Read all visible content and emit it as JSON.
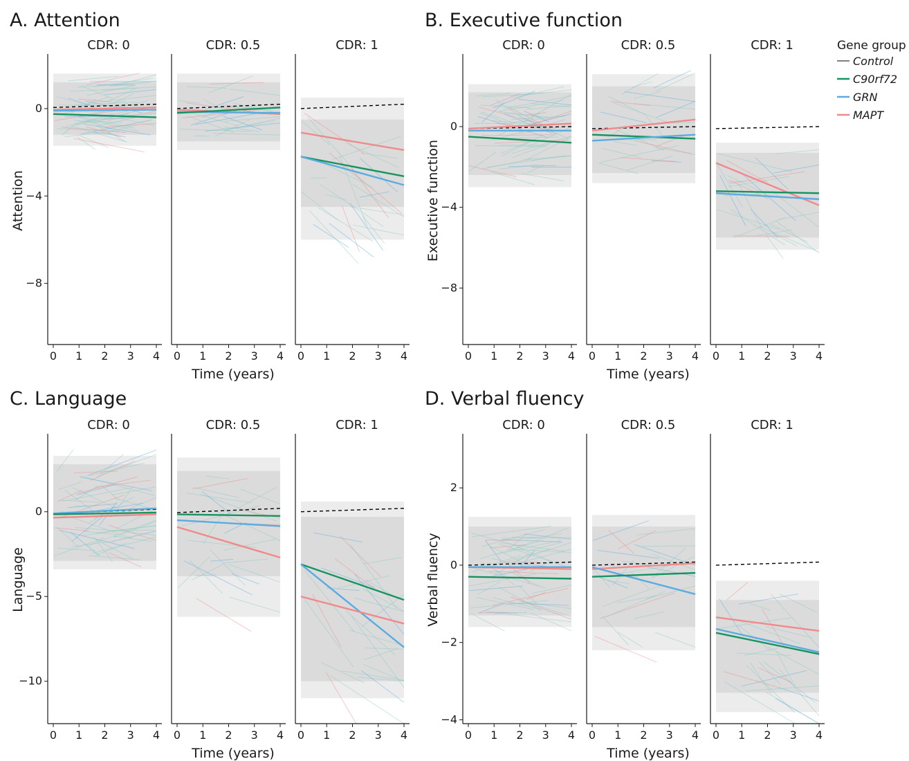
{
  "colors": {
    "Control": "#7f7f7f",
    "C90rf72": "#17935f",
    "GRN": "#5aabe0",
    "MAPT": "#f08a8a",
    "band_outer": "#ececec",
    "band_inner": "#d6d6d6",
    "spaghetti": "#8cc9c2"
  },
  "legend": {
    "title": "Gene group",
    "entries": [
      "Control",
      "C90rf72",
      "GRN",
      "MAPT"
    ]
  },
  "chart_data": [
    {
      "id": "A",
      "type": "line",
      "title": "A. Attention",
      "xlabel": "Time (years)",
      "ylabel": "Attention",
      "xlim": [
        0,
        4
      ],
      "ylim": [
        -10.8,
        2.5
      ],
      "yticks": [
        0,
        -4,
        -8
      ],
      "xticks": [
        0,
        1,
        2,
        3,
        4
      ],
      "show_xlabel": true,
      "facets": [
        {
          "strip": "CDR: 0",
          "series": [
            {
              "name": "Control",
              "x": [
                0,
                4
              ],
              "y": [
                0.05,
                0.2
              ],
              "dashed": true
            },
            {
              "name": "MAPT",
              "x": [
                0,
                4
              ],
              "y": [
                -0.05,
                0.05
              ]
            },
            {
              "name": "GRN",
              "x": [
                0,
                4
              ],
              "y": [
                -0.1,
                -0.05
              ]
            },
            {
              "name": "C90rf72",
              "x": [
                0,
                4
              ],
              "y": [
                -0.25,
                -0.4
              ]
            }
          ],
          "band_outer": [
            -1.7,
            1.6
          ],
          "band_inner": [
            -1.2,
            1.2
          ]
        },
        {
          "strip": "CDR: 0.5",
          "series": [
            {
              "name": "Control",
              "x": [
                0,
                4
              ],
              "y": [
                0.0,
                0.2
              ],
              "dashed": true
            },
            {
              "name": "MAPT",
              "x": [
                0,
                4
              ],
              "y": [
                -0.05,
                -0.25
              ]
            },
            {
              "name": "GRN",
              "x": [
                0,
                4
              ],
              "y": [
                -0.15,
                -0.2
              ]
            },
            {
              "name": "C90rf72",
              "x": [
                0,
                4
              ],
              "y": [
                -0.2,
                0.05
              ]
            }
          ],
          "band_outer": [
            -1.9,
            1.6
          ],
          "band_inner": [
            -1.5,
            1.2
          ]
        },
        {
          "strip": "CDR: 1",
          "series": [
            {
              "name": "Control",
              "x": [
                0,
                4
              ],
              "y": [
                0.0,
                0.2
              ],
              "dashed": true
            },
            {
              "name": "MAPT",
              "x": [
                0,
                4
              ],
              "y": [
                -1.1,
                -1.9
              ]
            },
            {
              "name": "C90rf72",
              "x": [
                0,
                4
              ],
              "y": [
                -2.2,
                -3.1
              ]
            },
            {
              "name": "GRN",
              "x": [
                0,
                4
              ],
              "y": [
                -2.2,
                -3.5
              ]
            }
          ],
          "band_outer": [
            -6.0,
            0.5
          ],
          "band_inner": [
            -4.5,
            -0.5
          ]
        }
      ]
    },
    {
      "id": "B",
      "type": "line",
      "title": "B. Executive function",
      "xlabel": "Time (years)",
      "ylabel": "Executive function",
      "xlim": [
        0,
        4
      ],
      "ylim": [
        -10.8,
        3.6
      ],
      "yticks": [
        0,
        -4,
        -8
      ],
      "xticks": [
        0,
        1,
        2,
        3,
        4
      ],
      "show_xlabel": true,
      "facets": [
        {
          "strip": "CDR: 0",
          "series": [
            {
              "name": "Control",
              "x": [
                0,
                4
              ],
              "y": [
                -0.1,
                0.0
              ],
              "dashed": true
            },
            {
              "name": "MAPT",
              "x": [
                0,
                4
              ],
              "y": [
                -0.1,
                0.15
              ]
            },
            {
              "name": "GRN",
              "x": [
                0,
                4
              ],
              "y": [
                -0.2,
                -0.2
              ]
            },
            {
              "name": "C90rf72",
              "x": [
                0,
                4
              ],
              "y": [
                -0.5,
                -0.8
              ]
            }
          ],
          "band_outer": [
            -3.0,
            2.1
          ],
          "band_inner": [
            -2.4,
            1.7
          ]
        },
        {
          "strip": "CDR: 0.5",
          "series": [
            {
              "name": "Control",
              "x": [
                0,
                4
              ],
              "y": [
                -0.1,
                0.0
              ],
              "dashed": true
            },
            {
              "name": "MAPT",
              "x": [
                0,
                4
              ],
              "y": [
                -0.2,
                0.35
              ]
            },
            {
              "name": "C90rf72",
              "x": [
                0,
                4
              ],
              "y": [
                -0.4,
                -0.6
              ]
            },
            {
              "name": "GRN",
              "x": [
                0,
                4
              ],
              "y": [
                -0.7,
                -0.4
              ]
            }
          ],
          "band_outer": [
            -2.8,
            2.6
          ],
          "band_inner": [
            -2.3,
            2.0
          ]
        },
        {
          "strip": "CDR: 1",
          "series": [
            {
              "name": "Control",
              "x": [
                0,
                4
              ],
              "y": [
                -0.1,
                0.0
              ],
              "dashed": true
            },
            {
              "name": "MAPT",
              "x": [
                0,
                4
              ],
              "y": [
                -1.8,
                -3.9
              ]
            },
            {
              "name": "C90rf72",
              "x": [
                0,
                4
              ],
              "y": [
                -3.2,
                -3.3
              ]
            },
            {
              "name": "GRN",
              "x": [
                0,
                4
              ],
              "y": [
                -3.3,
                -3.6
              ]
            }
          ],
          "band_outer": [
            -6.1,
            -0.8
          ],
          "band_inner": [
            -5.5,
            -1.3
          ]
        }
      ]
    },
    {
      "id": "C",
      "type": "line",
      "title": "C. Language",
      "xlabel": "Time (years)",
      "ylabel": "Language",
      "xlim": [
        0,
        4
      ],
      "ylim": [
        -12.5,
        4.6
      ],
      "yticks": [
        0,
        -5,
        -10
      ],
      "xticks": [
        0,
        1,
        2,
        3,
        4
      ],
      "show_xlabel": true,
      "facets": [
        {
          "strip": "CDR: 0",
          "series": [
            {
              "name": "Control",
              "x": [
                0,
                4
              ],
              "y": [
                -0.1,
                0.15
              ],
              "dashed": true
            },
            {
              "name": "GRN",
              "x": [
                0,
                4
              ],
              "y": [
                -0.1,
                0.2
              ]
            },
            {
              "name": "C90rf72",
              "x": [
                0,
                4
              ],
              "y": [
                -0.15,
                -0.05
              ]
            },
            {
              "name": "MAPT",
              "x": [
                0,
                4
              ],
              "y": [
                -0.35,
                -0.15
              ]
            }
          ],
          "band_outer": [
            -3.4,
            3.3
          ],
          "band_inner": [
            -2.9,
            2.8
          ]
        },
        {
          "strip": "CDR: 0.5",
          "series": [
            {
              "name": "Control",
              "x": [
                0,
                4
              ],
              "y": [
                -0.05,
                0.2
              ],
              "dashed": true
            },
            {
              "name": "C90rf72",
              "x": [
                0,
                4
              ],
              "y": [
                -0.15,
                -0.25
              ]
            },
            {
              "name": "GRN",
              "x": [
                0,
                4
              ],
              "y": [
                -0.5,
                -0.85
              ]
            },
            {
              "name": "MAPT",
              "x": [
                0,
                4
              ],
              "y": [
                -0.9,
                -2.7
              ]
            }
          ],
          "band_outer": [
            -6.2,
            3.2
          ],
          "band_inner": [
            -3.8,
            2.4
          ]
        },
        {
          "strip": "CDR: 1",
          "series": [
            {
              "name": "Control",
              "x": [
                0,
                4
              ],
              "y": [
                0.0,
                0.2
              ],
              "dashed": true
            },
            {
              "name": "C90rf72",
              "x": [
                0,
                4
              ],
              "y": [
                -3.1,
                -5.2
              ]
            },
            {
              "name": "GRN",
              "x": [
                0,
                4
              ],
              "y": [
                -3.1,
                -8.0
              ]
            },
            {
              "name": "MAPT",
              "x": [
                0,
                4
              ],
              "y": [
                -5.0,
                -6.6
              ]
            }
          ],
          "band_outer": [
            -11.0,
            0.6
          ],
          "band_inner": [
            -10.0,
            -0.3
          ]
        }
      ]
    },
    {
      "id": "D",
      "type": "line",
      "title": "D. Verbal fluency",
      "xlabel": "Time (years)",
      "ylabel": "Verbal fluency",
      "xlim": [
        0,
        4
      ],
      "ylim": [
        -4.1,
        3.4
      ],
      "yticks": [
        2,
        0,
        -2,
        -4
      ],
      "xticks": [
        0,
        1,
        2,
        3,
        4
      ],
      "show_xlabel": true,
      "facets": [
        {
          "strip": "CDR: 0",
          "series": [
            {
              "name": "Control",
              "x": [
                0,
                4
              ],
              "y": [
                0.0,
                0.08
              ],
              "dashed": true
            },
            {
              "name": "MAPT",
              "x": [
                0,
                4
              ],
              "y": [
                -0.05,
                -0.1
              ]
            },
            {
              "name": "GRN",
              "x": [
                0,
                4
              ],
              "y": [
                -0.05,
                -0.05
              ]
            },
            {
              "name": "C90rf72",
              "x": [
                0,
                4
              ],
              "y": [
                -0.3,
                -0.35
              ]
            }
          ],
          "band_outer": [
            -1.6,
            1.25
          ],
          "band_inner": [
            -1.3,
            1.0
          ]
        },
        {
          "strip": "CDR: 0.5",
          "series": [
            {
              "name": "Control",
              "x": [
                0,
                4
              ],
              "y": [
                0.0,
                0.08
              ],
              "dashed": true
            },
            {
              "name": "MAPT",
              "x": [
                0,
                4
              ],
              "y": [
                -0.1,
                0.05
              ]
            },
            {
              "name": "GRN",
              "x": [
                0,
                4
              ],
              "y": [
                -0.05,
                -0.75
              ]
            },
            {
              "name": "C90rf72",
              "x": [
                0,
                4
              ],
              "y": [
                -0.3,
                -0.2
              ]
            }
          ],
          "band_outer": [
            -2.2,
            1.3
          ],
          "band_inner": [
            -1.6,
            1.0
          ]
        },
        {
          "strip": "CDR: 1",
          "series": [
            {
              "name": "Control",
              "x": [
                0,
                4
              ],
              "y": [
                0.0,
                0.08
              ],
              "dashed": true
            },
            {
              "name": "MAPT",
              "x": [
                0,
                4
              ],
              "y": [
                -1.35,
                -1.7
              ]
            },
            {
              "name": "GRN",
              "x": [
                0,
                4
              ],
              "y": [
                -1.65,
                -2.25
              ]
            },
            {
              "name": "C90rf72",
              "x": [
                0,
                4
              ],
              "y": [
                -1.75,
                -2.3
              ]
            }
          ],
          "band_outer": [
            -3.8,
            -0.4
          ],
          "band_inner": [
            -3.3,
            -0.9
          ]
        }
      ]
    }
  ]
}
